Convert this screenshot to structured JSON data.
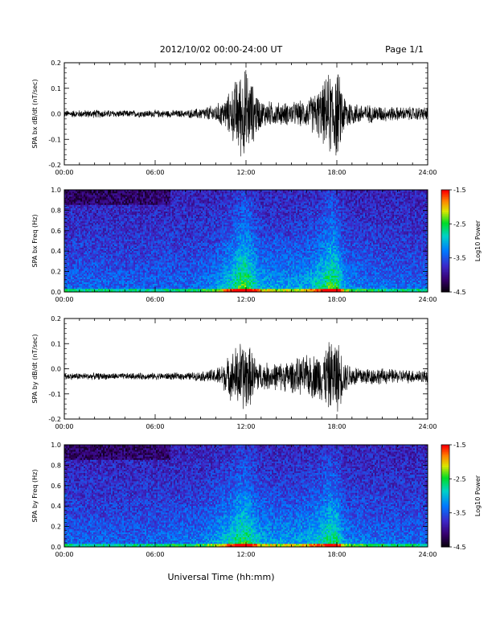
{
  "header": {
    "title": "2012/10/02  00:00-24:00 UT",
    "page": "Page 1/1"
  },
  "xlabel": "Universal Time (hh:mm)",
  "chart_data": [
    {
      "type": "line",
      "ylabel": "SPA bx dB/dt (nT/sec)",
      "xlim": [
        "00:00",
        "24:00"
      ],
      "ylim": [
        -0.2,
        0.2
      ],
      "xticks": [
        "00:00",
        "06:00",
        "12:00",
        "18:00",
        "24:00"
      ],
      "yticks": [
        "-0.2",
        "-0.1",
        "0.0",
        "0.1",
        "0.2"
      ],
      "envelope": {
        "hours": [
          0,
          2,
          4,
          6,
          8,
          9,
          10,
          10.5,
          11,
          11.5,
          12,
          12.5,
          13,
          14,
          15,
          16,
          17,
          17.5,
          18,
          18.5,
          19,
          20,
          22,
          24
        ],
        "amplitude": [
          0.015,
          0.018,
          0.015,
          0.016,
          0.016,
          0.025,
          0.04,
          0.06,
          0.1,
          0.18,
          0.2,
          0.12,
          0.06,
          0.05,
          0.05,
          0.06,
          0.12,
          0.18,
          0.2,
          0.09,
          0.05,
          0.04,
          0.03,
          0.03
        ],
        "baseline": [
          0.0,
          0.0,
          0.0,
          0.0,
          0.0,
          0.0,
          0.0,
          0.0,
          0.0,
          0.0,
          0.0,
          0.0,
          0.0,
          0.0,
          0.0,
          0.0,
          0.0,
          0.0,
          0.0,
          0.0,
          0.0,
          0.0,
          0.0,
          0.0
        ]
      }
    },
    {
      "type": "heatmap",
      "ylabel": "SPA bx Freq (Hz)",
      "xlim": [
        "00:00",
        "24:00"
      ],
      "ylim": [
        0.0,
        1.0
      ],
      "xticks": [
        "00:00",
        "06:00",
        "12:00",
        "18:00",
        "24:00"
      ],
      "yticks": [
        "0.0",
        "0.2",
        "0.4",
        "0.6",
        "0.8",
        "1.0"
      ],
      "colorbar": {
        "label": "Log10 Power",
        "ticks": [
          "-1.5",
          "-2.5",
          "-3.5",
          "-4.5"
        ],
        "range": [
          -4.5,
          -1.5
        ]
      },
      "activity": {
        "hours": [
          0,
          2,
          4,
          6,
          8,
          9,
          10,
          11,
          11.5,
          12,
          12.5,
          13,
          14,
          15,
          16,
          17,
          17.5,
          18,
          18.5,
          19,
          20,
          22,
          24
        ],
        "level": [
          0.15,
          0.15,
          0.12,
          0.15,
          0.15,
          0.2,
          0.3,
          0.55,
          0.75,
          0.85,
          0.6,
          0.4,
          0.35,
          0.35,
          0.4,
          0.6,
          0.8,
          0.75,
          0.35,
          0.25,
          0.2,
          0.15,
          0.15
        ]
      }
    },
    {
      "type": "line",
      "ylabel": "SPA by dB/dt (nT/sec)",
      "xlim": [
        "00:00",
        "24:00"
      ],
      "ylim": [
        -0.2,
        0.2
      ],
      "xticks": [
        "00:00",
        "06:00",
        "12:00",
        "18:00",
        "24:00"
      ],
      "yticks": [
        "-0.2",
        "-0.1",
        "0.0",
        "0.1",
        "0.2"
      ],
      "envelope": {
        "hours": [
          0,
          2,
          4,
          6,
          8,
          9,
          10,
          10.5,
          11,
          11.5,
          12,
          12.5,
          13,
          14,
          15,
          16,
          17,
          17.5,
          18,
          18.5,
          19,
          20,
          22,
          24
        ],
        "amplitude": [
          0.015,
          0.015,
          0.014,
          0.015,
          0.016,
          0.02,
          0.035,
          0.06,
          0.1,
          0.15,
          0.16,
          0.1,
          0.06,
          0.06,
          0.07,
          0.09,
          0.11,
          0.15,
          0.17,
          0.07,
          0.05,
          0.04,
          0.03,
          0.03
        ],
        "baseline": [
          -0.03,
          -0.03,
          -0.03,
          -0.03,
          -0.03,
          -0.03,
          -0.03,
          -0.03,
          -0.03,
          -0.03,
          -0.03,
          -0.03,
          -0.03,
          -0.03,
          -0.03,
          -0.03,
          -0.03,
          -0.03,
          -0.03,
          -0.03,
          -0.03,
          -0.03,
          -0.03,
          -0.03
        ]
      }
    },
    {
      "type": "heatmap",
      "ylabel": "SPA by Freq (Hz)",
      "xlim": [
        "00:00",
        "24:00"
      ],
      "ylim": [
        0.0,
        1.0
      ],
      "xticks": [
        "00:00",
        "06:00",
        "12:00",
        "18:00",
        "24:00"
      ],
      "yticks": [
        "0.0",
        "0.2",
        "0.4",
        "0.6",
        "0.8",
        "1.0"
      ],
      "colorbar": {
        "label": "Log10 Power",
        "ticks": [
          "-1.5",
          "-2.5",
          "-3.5",
          "-4.5"
        ],
        "range": [
          -4.5,
          -1.5
        ]
      },
      "activity": {
        "hours": [
          0,
          2,
          4,
          6,
          7,
          8,
          9,
          10,
          11,
          11.5,
          12,
          12.5,
          13,
          14,
          15,
          16,
          17,
          17.5,
          18,
          18.5,
          19,
          20,
          22,
          24
        ],
        "level": [
          0.15,
          0.12,
          0.12,
          0.15,
          0.18,
          0.18,
          0.22,
          0.35,
          0.55,
          0.7,
          0.75,
          0.55,
          0.4,
          0.35,
          0.35,
          0.4,
          0.55,
          0.7,
          0.65,
          0.3,
          0.25,
          0.2,
          0.15,
          0.15
        ]
      }
    }
  ]
}
